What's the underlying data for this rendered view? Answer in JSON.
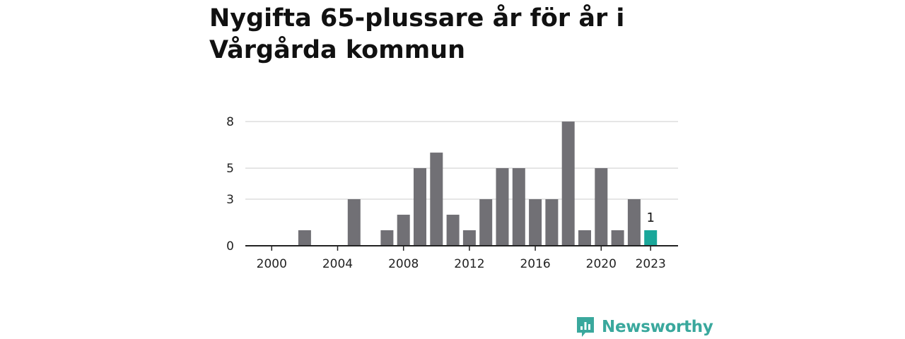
{
  "title": "Nygifta 65-plussare år för år i Vårgårda kommun",
  "brand": {
    "name": "Newsworthy",
    "icon": "newsworthy-logo-icon"
  },
  "colors": {
    "bar": "#717075",
    "highlight": "#1aa79a",
    "grid": "#dddddd",
    "axis": "#222222"
  },
  "chart_data": {
    "type": "bar",
    "title": "Nygifta 65-plussare år för år i Vårgårda kommun",
    "xlabel": "",
    "ylabel": "",
    "categories": [
      "1999",
      "2000",
      "2001",
      "2002",
      "2003",
      "2004",
      "2005",
      "2006",
      "2007",
      "2008",
      "2009",
      "2010",
      "2011",
      "2012",
      "2013",
      "2014",
      "2015",
      "2016",
      "2017",
      "2018",
      "2019",
      "2020",
      "2021",
      "2022",
      "2023"
    ],
    "values": [
      0,
      0,
      0,
      1,
      0,
      0,
      3,
      0,
      1,
      2,
      5,
      6,
      2,
      1,
      3,
      5,
      5,
      3,
      3,
      8,
      1,
      5,
      1,
      3,
      1
    ],
    "highlight": {
      "category": "2023",
      "label": "1"
    },
    "x_tick_labels": [
      "2000",
      "2004",
      "2008",
      "2012",
      "2016",
      "2020",
      "2023"
    ],
    "y_tick_labels": [
      "0",
      "3",
      "5",
      "8"
    ],
    "ylim": [
      0,
      8
    ],
    "grid": true,
    "legend": "none"
  }
}
